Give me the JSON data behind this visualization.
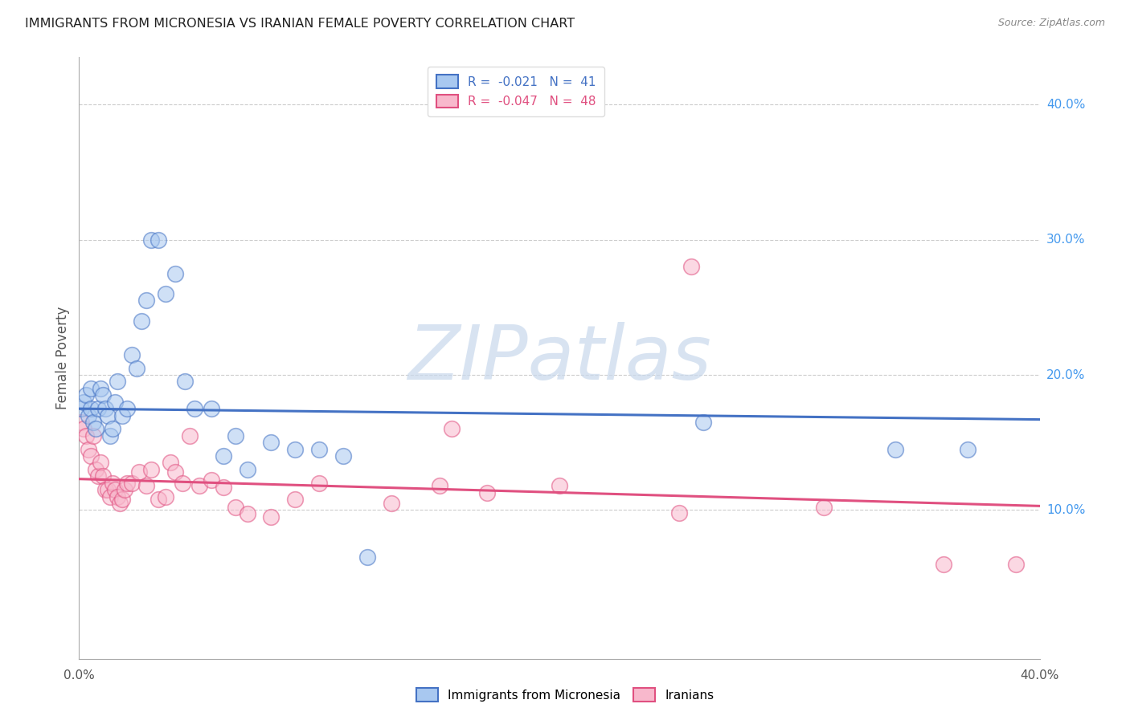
{
  "title": "IMMIGRANTS FROM MICRONESIA VS IRANIAN FEMALE POVERTY CORRELATION CHART",
  "source": "Source: ZipAtlas.com",
  "ylabel": "Female Poverty",
  "right_yticklabels": [
    "10.0%",
    "20.0%",
    "30.0%",
    "40.0%"
  ],
  "right_ytick_values": [
    0.1,
    0.2,
    0.3,
    0.4
  ],
  "xmin": 0.0,
  "xmax": 0.4,
  "ymin": -0.01,
  "ymax": 0.435,
  "color_blue": "#A8C8F0",
  "color_pink": "#F8B8CC",
  "line_blue": "#4472C4",
  "line_pink": "#E05080",
  "blue_series_x": [
    0.001,
    0.002,
    0.003,
    0.004,
    0.005,
    0.005,
    0.006,
    0.007,
    0.008,
    0.009,
    0.01,
    0.011,
    0.012,
    0.013,
    0.014,
    0.015,
    0.016,
    0.018,
    0.02,
    0.022,
    0.024,
    0.026,
    0.028,
    0.03,
    0.033,
    0.036,
    0.04,
    0.044,
    0.048,
    0.055,
    0.06,
    0.065,
    0.07,
    0.08,
    0.09,
    0.1,
    0.11,
    0.12,
    0.26,
    0.34,
    0.37
  ],
  "blue_series_y": [
    0.175,
    0.18,
    0.185,
    0.17,
    0.175,
    0.19,
    0.165,
    0.16,
    0.175,
    0.19,
    0.185,
    0.175,
    0.17,
    0.155,
    0.16,
    0.18,
    0.195,
    0.17,
    0.175,
    0.215,
    0.205,
    0.24,
    0.255,
    0.3,
    0.3,
    0.26,
    0.275,
    0.195,
    0.175,
    0.175,
    0.14,
    0.155,
    0.13,
    0.15,
    0.145,
    0.145,
    0.14,
    0.065,
    0.165,
    0.145,
    0.145
  ],
  "pink_series_x": [
    0.001,
    0.002,
    0.003,
    0.004,
    0.005,
    0.006,
    0.007,
    0.008,
    0.009,
    0.01,
    0.011,
    0.012,
    0.013,
    0.014,
    0.015,
    0.016,
    0.017,
    0.018,
    0.019,
    0.02,
    0.022,
    0.025,
    0.028,
    0.03,
    0.033,
    0.036,
    0.038,
    0.04,
    0.043,
    0.046,
    0.05,
    0.055,
    0.06,
    0.065,
    0.07,
    0.08,
    0.09,
    0.1,
    0.13,
    0.15,
    0.17,
    0.2,
    0.25,
    0.31,
    0.36,
    0.39,
    0.255,
    0.155
  ],
  "pink_series_y": [
    0.165,
    0.16,
    0.155,
    0.145,
    0.14,
    0.155,
    0.13,
    0.125,
    0.135,
    0.125,
    0.115,
    0.115,
    0.11,
    0.12,
    0.115,
    0.11,
    0.105,
    0.108,
    0.115,
    0.12,
    0.12,
    0.128,
    0.118,
    0.13,
    0.108,
    0.11,
    0.135,
    0.128,
    0.12,
    0.155,
    0.118,
    0.122,
    0.117,
    0.102,
    0.097,
    0.095,
    0.108,
    0.12,
    0.105,
    0.118,
    0.113,
    0.118,
    0.098,
    0.102,
    0.06,
    0.06,
    0.28,
    0.16
  ],
  "blue_trend_x": [
    0.0,
    0.4
  ],
  "blue_trend_y": [
    0.175,
    0.167
  ],
  "pink_trend_x": [
    0.0,
    0.4
  ],
  "pink_trend_y": [
    0.123,
    0.103
  ],
  "background_color": "#FFFFFF",
  "grid_color": "#CCCCCC",
  "marker_size": 200,
  "marker_alpha": 0.55,
  "marker_linewidth": 1.2,
  "watermark_text": "ZIPatlas",
  "watermark_color": "#C8D8EC",
  "watermark_alpha": 0.7
}
